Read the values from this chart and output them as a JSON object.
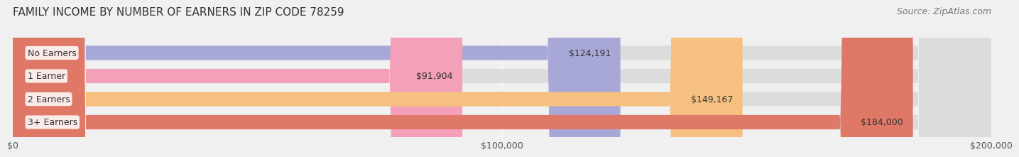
{
  "title": "FAMILY INCOME BY NUMBER OF EARNERS IN ZIP CODE 78259",
  "source": "Source: ZipAtlas.com",
  "categories": [
    "No Earners",
    "1 Earner",
    "2 Earners",
    "3+ Earners"
  ],
  "values": [
    124191,
    91904,
    149167,
    184000
  ],
  "bar_colors": [
    "#a8a8d8",
    "#f4a0b8",
    "#f5c080",
    "#e07868"
  ],
  "label_colors": [
    "#6666aa",
    "#cc6688",
    "#e09040",
    "#c05040"
  ],
  "value_labels": [
    "$124,191",
    "$91,904",
    "$149,167",
    "$184,000"
  ],
  "xmax": 200000,
  "xticks": [
    0,
    100000,
    200000
  ],
  "xtick_labels": [
    "$0",
    "$100,000",
    "$200,000"
  ],
  "background_color": "#f0f0f0",
  "bar_background": "#e8e8e8",
  "title_fontsize": 11,
  "source_fontsize": 9,
  "label_fontsize": 9,
  "value_fontsize": 9
}
